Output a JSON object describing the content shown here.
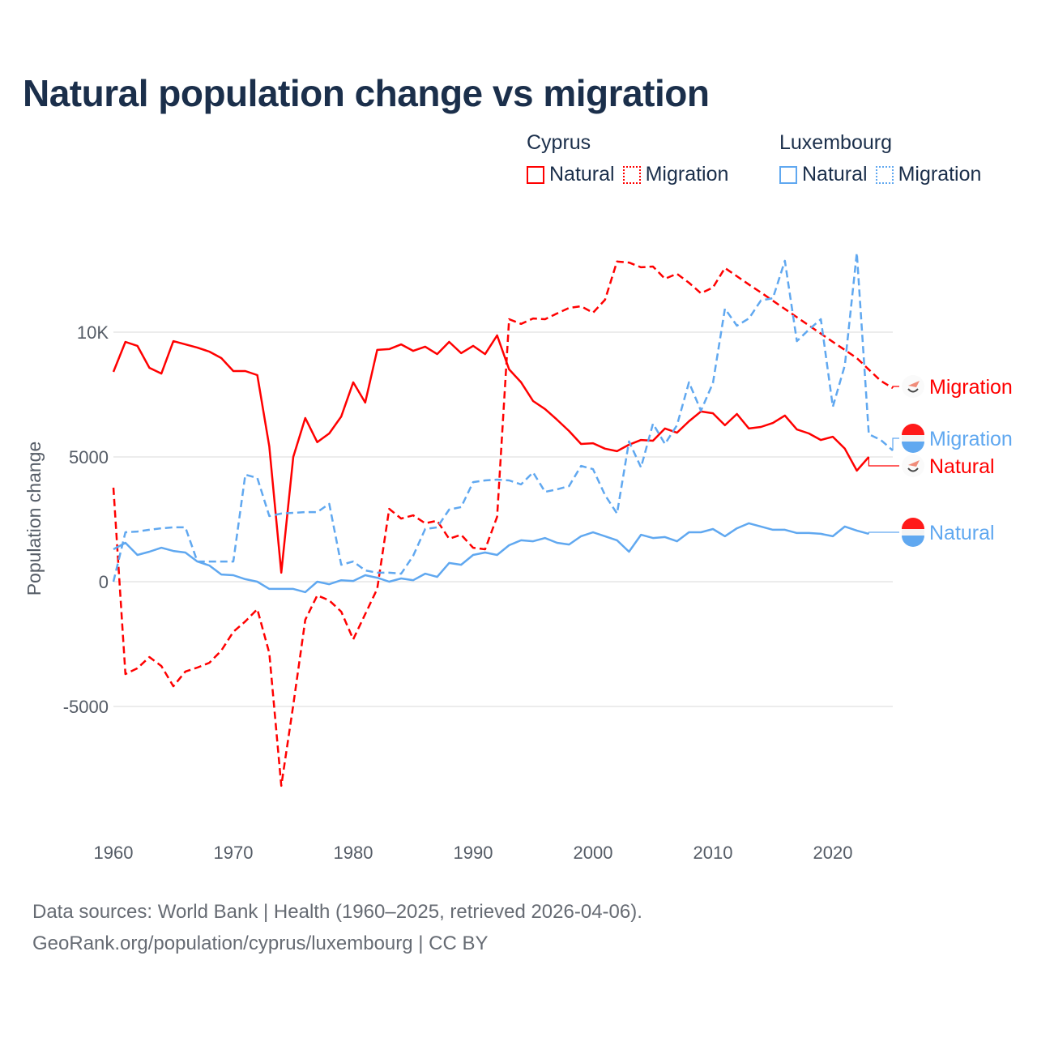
{
  "title": "Natural population change vs migration",
  "legend": {
    "groups": [
      {
        "name": "Cyprus",
        "color": "#ff0000",
        "items": [
          "Natural",
          "Migration"
        ]
      },
      {
        "name": "Luxembourg",
        "color": "#60a8f0",
        "items": [
          "Natural",
          "Migration"
        ]
      }
    ]
  },
  "footer": {
    "line1": "Data sources: World Bank | Health (1960–2025, retrieved 2026-04-06).",
    "line2": "GeoRank.org/population/cyprus/luxembourg | CC BY"
  },
  "chart_data": {
    "type": "line",
    "title": "Natural population change vs migration",
    "xlabel": "",
    "ylabel": "Population change",
    "xlim": [
      1960,
      2025
    ],
    "ylim": [
      -10000,
      14000
    ],
    "xticks": [
      {
        "v": 1960,
        "label": "1960"
      },
      {
        "v": 1970,
        "label": "1970"
      },
      {
        "v": 1980,
        "label": "1980"
      },
      {
        "v": 1990,
        "label": "1990"
      },
      {
        "v": 2000,
        "label": "2000"
      },
      {
        "v": 2010,
        "label": "2010"
      },
      {
        "v": 2020,
        "label": "2020"
      }
    ],
    "yticks": [
      {
        "v": -5000,
        "label": "-5000"
      },
      {
        "v": 0,
        "label": "0"
      },
      {
        "v": 5000,
        "label": "5000"
      },
      {
        "v": 10000,
        "label": "10K"
      }
    ],
    "grid": true,
    "legend_placement": "top-right",
    "series": [
      {
        "name": "Cyprus Natural",
        "country": "Cyprus",
        "kind": "Natural",
        "color": "#ff0000",
        "dash": false,
        "start": 1960,
        "end_label": "Natural",
        "values": [
          8410,
          9610,
          9450,
          8570,
          8340,
          9640,
          9510,
          9380,
          9220,
          8960,
          8440,
          8440,
          8280,
          5420,
          360,
          5000,
          6560,
          5590,
          5940,
          6620,
          7990,
          7180,
          9290,
          9320,
          9510,
          9250,
          9420,
          9120,
          9610,
          9160,
          9450,
          9120,
          9870,
          8510,
          7990,
          7240,
          6920,
          6490,
          6040,
          5520,
          5550,
          5330,
          5230,
          5490,
          5680,
          5650,
          6140,
          5970,
          6430,
          6820,
          6750,
          6270,
          6720,
          6140,
          6200,
          6360,
          6660,
          6100,
          5940,
          5680,
          5810,
          5330,
          4450,
          5000
        ]
      },
      {
        "name": "Cyprus Migration",
        "country": "Cyprus",
        "kind": "Migration",
        "color": "#ff0000",
        "dash": true,
        "start": 1960,
        "end_label": "Migration",
        "values": [
          3770,
          -3700,
          -3470,
          -3020,
          -3380,
          -4190,
          -3600,
          -3440,
          -3250,
          -2760,
          -2010,
          -1590,
          -1100,
          -2860,
          -8180,
          -4940,
          -1530,
          -550,
          -750,
          -1200,
          -2310,
          -1300,
          -290,
          2920,
          2530,
          2660,
          2340,
          2440,
          1720,
          1880,
          1360,
          1300,
          2600,
          10520,
          10330,
          10550,
          10520,
          10750,
          10970,
          11040,
          10780,
          11300,
          12830,
          12790,
          12600,
          12630,
          12140,
          12340,
          11980,
          11560,
          11790,
          12570,
          12240,
          11910,
          11590,
          11260,
          10930,
          10600,
          10270,
          9940,
          9610,
          9290,
          8960,
          8500,
          8050,
          7760
        ]
      },
      {
        "name": "Luxembourg Natural",
        "country": "Luxembourg",
        "kind": "Natural",
        "color": "#60a8f0",
        "dash": false,
        "start": 1960,
        "end_label": "Natural",
        "values": [
          1300,
          1560,
          1070,
          1200,
          1360,
          1230,
          1170,
          810,
          650,
          290,
          260,
          100,
          0,
          -290,
          -290,
          -290,
          -420,
          0,
          -100,
          60,
          30,
          260,
          160,
          0,
          130,
          60,
          320,
          190,
          750,
          680,
          1070,
          1170,
          1070,
          1460,
          1660,
          1620,
          1750,
          1560,
          1490,
          1820,
          1980,
          1820,
          1660,
          1200,
          1880,
          1750,
          1790,
          1620,
          1980,
          1980,
          2110,
          1820,
          2140,
          2340,
          2210,
          2080,
          2080,
          1950,
          1950,
          1920,
          1820,
          2210,
          2050,
          1920
        ]
      },
      {
        "name": "Luxembourg Migration",
        "country": "Luxembourg",
        "kind": "Migration",
        "color": "#60a8f0",
        "dash": true,
        "start": 1960,
        "end_label": "Migration",
        "values": [
          0,
          1980,
          2010,
          2080,
          2140,
          2180,
          2180,
          810,
          810,
          810,
          810,
          4290,
          4160,
          2630,
          2730,
          2760,
          2790,
          2790,
          3120,
          680,
          810,
          450,
          360,
          360,
          320,
          1040,
          2110,
          2180,
          2890,
          2990,
          3990,
          4060,
          4090,
          4060,
          3900,
          4380,
          3600,
          3700,
          3830,
          4640,
          4510,
          3470,
          2730,
          5620,
          4580,
          6330,
          5520,
          6270,
          7990,
          6850,
          7960,
          10940,
          10260,
          10550,
          11270,
          11360,
          12860,
          9640,
          10100,
          10520,
          7010,
          8670,
          13180,
          5910,
          5680,
          5260
        ]
      }
    ]
  }
}
